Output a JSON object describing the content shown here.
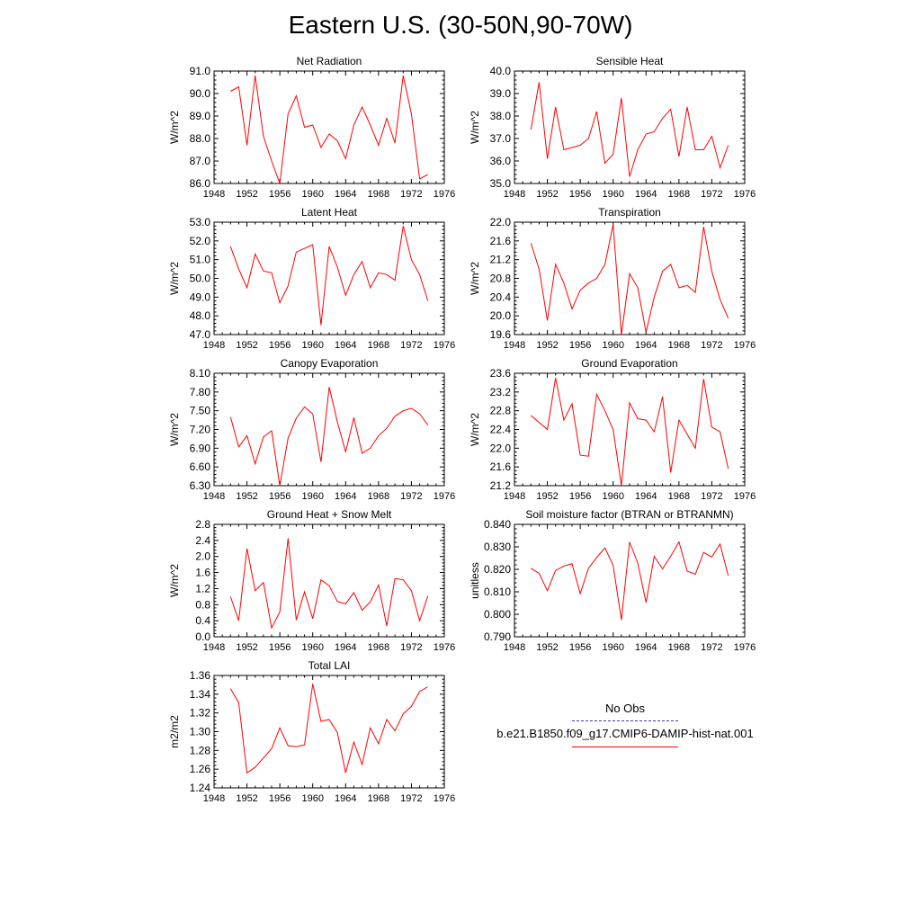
{
  "title": "Eastern U.S. (30-50N,90-70W)",
  "colors": {
    "model_line": "#ff0000",
    "obs_line": "#3a3aa0",
    "axis": "#000000"
  },
  "legend": {
    "obs_label": "No Obs",
    "model_label": "b.e21.B1850.f09_g17.CMIP6-DAMIP-hist-nat.001"
  },
  "chart_data": [
    {
      "type": "line",
      "title": "Net Radiation",
      "xlabel": "",
      "ylabel": "W/m^2",
      "xlim": [
        1948,
        1976
      ],
      "ylim": [
        86.0,
        91.0
      ],
      "xticks": [
        1948,
        1952,
        1956,
        1960,
        1964,
        1968,
        1972,
        1976
      ],
      "yticks": [
        "86.0",
        "87.0",
        "88.0",
        "89.0",
        "90.0",
        "91.0"
      ],
      "x": [
        1950,
        1951,
        1952,
        1953,
        1954,
        1955,
        1956,
        1957,
        1958,
        1959,
        1960,
        1961,
        1962,
        1963,
        1964,
        1965,
        1966,
        1967,
        1968,
        1969,
        1970,
        1971,
        1972,
        1973,
        1974
      ],
      "series": [
        {
          "values": [
            90.1,
            90.3,
            87.7,
            90.8,
            88.1,
            87.0,
            86.0,
            89.1,
            89.9,
            88.5,
            88.6,
            87.6,
            88.2,
            87.9,
            87.1,
            88.6,
            89.4,
            88.6,
            87.7,
            88.9,
            87.8,
            90.8,
            89.1,
            86.2,
            86.4
          ]
        }
      ]
    },
    {
      "type": "line",
      "title": "Sensible Heat",
      "xlabel": "",
      "ylabel": "W/m^2",
      "xlim": [
        1948,
        1976
      ],
      "ylim": [
        35.0,
        40.0
      ],
      "xticks": [
        1948,
        1952,
        1956,
        1960,
        1964,
        1968,
        1972,
        1976
      ],
      "yticks": [
        "35.0",
        "36.0",
        "37.0",
        "38.0",
        "39.0",
        "40.0"
      ],
      "x": [
        1950,
        1951,
        1952,
        1953,
        1954,
        1955,
        1956,
        1957,
        1958,
        1959,
        1960,
        1961,
        1962,
        1963,
        1964,
        1965,
        1966,
        1967,
        1968,
        1969,
        1970,
        1971,
        1972,
        1973,
        1974
      ],
      "series": [
        {
          "values": [
            37.4,
            39.5,
            36.1,
            38.4,
            36.5,
            36.6,
            36.7,
            37.0,
            38.2,
            35.9,
            36.3,
            38.8,
            35.3,
            36.5,
            37.2,
            37.3,
            37.9,
            38.3,
            36.2,
            38.4,
            36.5,
            36.5,
            37.1,
            35.7,
            36.7
          ]
        }
      ]
    },
    {
      "type": "line",
      "title": "Latent Heat",
      "xlabel": "",
      "ylabel": "W/m^2",
      "xlim": [
        1948,
        1976
      ],
      "ylim": [
        47.0,
        53.0
      ],
      "xticks": [
        1948,
        1952,
        1956,
        1960,
        1964,
        1968,
        1972,
        1976
      ],
      "yticks": [
        "47.0",
        "48.0",
        "49.0",
        "50.0",
        "51.0",
        "52.0",
        "53.0"
      ],
      "x": [
        1950,
        1951,
        1952,
        1953,
        1954,
        1955,
        1956,
        1957,
        1958,
        1959,
        1960,
        1961,
        1962,
        1963,
        1964,
        1965,
        1966,
        1967,
        1968,
        1969,
        1970,
        1971,
        1972,
        1973,
        1974
      ],
      "series": [
        {
          "values": [
            51.7,
            50.5,
            49.5,
            51.3,
            50.4,
            50.3,
            48.7,
            49.6,
            51.4,
            51.6,
            51.8,
            47.5,
            51.7,
            50.6,
            49.1,
            50.2,
            50.9,
            49.5,
            50.3,
            50.2,
            49.9,
            52.8,
            51.0,
            50.2,
            48.8
          ]
        }
      ]
    },
    {
      "type": "line",
      "title": "Transpiration",
      "xlabel": "",
      "ylabel": "W/m^2",
      "xlim": [
        1948,
        1976
      ],
      "ylim": [
        19.6,
        22.0
      ],
      "xticks": [
        1948,
        1952,
        1956,
        1960,
        1964,
        1968,
        1972,
        1976
      ],
      "yticks": [
        "19.6",
        "20.0",
        "20.4",
        "20.8",
        "21.2",
        "21.6",
        "22.0"
      ],
      "x": [
        1950,
        1951,
        1952,
        1953,
        1954,
        1955,
        1956,
        1957,
        1958,
        1959,
        1960,
        1961,
        1962,
        1963,
        1964,
        1965,
        1966,
        1967,
        1968,
        1969,
        1970,
        1971,
        1972,
        1973,
        1974
      ],
      "series": [
        {
          "values": [
            21.55,
            21.0,
            19.9,
            21.1,
            20.7,
            20.15,
            20.55,
            20.7,
            20.8,
            21.1,
            21.95,
            19.6,
            20.9,
            20.6,
            19.65,
            20.4,
            20.95,
            21.1,
            20.6,
            20.65,
            20.5,
            21.9,
            20.95,
            20.35,
            19.95
          ]
        }
      ]
    },
    {
      "type": "line",
      "title": "Canopy Evaporation",
      "xlabel": "",
      "ylabel": "W/m^2",
      "xlim": [
        1948,
        1976
      ],
      "ylim": [
        6.3,
        8.1
      ],
      "xticks": [
        1948,
        1952,
        1956,
        1960,
        1964,
        1968,
        1972,
        1976
      ],
      "yticks": [
        "6.30",
        "6.60",
        "6.90",
        "7.20",
        "7.50",
        "7.80",
        "8.10"
      ],
      "x": [
        1950,
        1951,
        1952,
        1953,
        1954,
        1955,
        1956,
        1957,
        1958,
        1959,
        1960,
        1961,
        1962,
        1963,
        1964,
        1965,
        1966,
        1967,
        1968,
        1969,
        1970,
        1971,
        1972,
        1973,
        1974
      ],
      "series": [
        {
          "values": [
            7.4,
            6.92,
            7.1,
            6.65,
            7.08,
            7.18,
            6.3,
            7.06,
            7.38,
            7.56,
            7.45,
            6.68,
            7.88,
            7.32,
            6.84,
            7.39,
            6.82,
            6.9,
            7.1,
            7.22,
            7.41,
            7.5,
            7.54,
            7.45,
            7.27
          ]
        }
      ]
    },
    {
      "type": "line",
      "title": "Ground Evaporation",
      "xlabel": "",
      "ylabel": "W/m^2",
      "xlim": [
        1948,
        1976
      ],
      "ylim": [
        21.2,
        23.6
      ],
      "xticks": [
        1948,
        1952,
        1956,
        1960,
        1964,
        1968,
        1972,
        1976
      ],
      "yticks": [
        "21.2",
        "21.6",
        "22.0",
        "22.4",
        "22.8",
        "23.2",
        "23.6"
      ],
      "x": [
        1950,
        1951,
        1952,
        1953,
        1954,
        1955,
        1956,
        1957,
        1958,
        1959,
        1960,
        1961,
        1962,
        1963,
        1964,
        1965,
        1966,
        1967,
        1968,
        1969,
        1970,
        1971,
        1972,
        1973,
        1974
      ],
      "series": [
        {
          "values": [
            22.7,
            22.55,
            22.4,
            23.5,
            22.6,
            22.95,
            21.85,
            21.83,
            23.15,
            22.8,
            22.4,
            21.2,
            22.97,
            22.63,
            22.6,
            22.35,
            23.1,
            21.48,
            22.6,
            22.3,
            22.0,
            23.48,
            22.45,
            22.35,
            21.56
          ]
        }
      ]
    },
    {
      "type": "line",
      "title": "Ground Heat + Snow Melt",
      "xlabel": "",
      "ylabel": "W/m^2",
      "xlim": [
        1948,
        1976
      ],
      "ylim": [
        0.0,
        2.8
      ],
      "xticks": [
        1948,
        1952,
        1956,
        1960,
        1964,
        1968,
        1972,
        1976
      ],
      "yticks": [
        "0.0",
        "0.4",
        "0.8",
        "1.2",
        "1.6",
        "2.0",
        "2.4",
        "2.8"
      ],
      "x": [
        1950,
        1951,
        1952,
        1953,
        1954,
        1955,
        1956,
        1957,
        1958,
        1959,
        1960,
        1961,
        1962,
        1963,
        1964,
        1965,
        1966,
        1967,
        1968,
        1969,
        1970,
        1971,
        1972,
        1973,
        1974
      ],
      "series": [
        {
          "values": [
            1.0,
            0.4,
            2.2,
            1.15,
            1.35,
            0.22,
            0.62,
            2.45,
            0.42,
            1.12,
            0.45,
            1.42,
            1.27,
            0.88,
            0.82,
            1.1,
            0.66,
            0.87,
            1.29,
            0.27,
            1.45,
            1.42,
            1.15,
            0.4,
            1.02
          ]
        }
      ]
    },
    {
      "type": "line",
      "title": "Soil moisture factor (BTRAN or BTRANMN)",
      "xlabel": "",
      "ylabel": "unitless",
      "xlim": [
        1948,
        1976
      ],
      "ylim": [
        0.79,
        0.84
      ],
      "xticks": [
        1948,
        1952,
        1956,
        1960,
        1964,
        1968,
        1972,
        1976
      ],
      "yticks": [
        "0.790",
        "0.800",
        "0.810",
        "0.820",
        "0.830",
        "0.840"
      ],
      "x": [
        1950,
        1951,
        1952,
        1953,
        1954,
        1955,
        1956,
        1957,
        1958,
        1959,
        1960,
        1961,
        1962,
        1963,
        1964,
        1965,
        1966,
        1967,
        1968,
        1969,
        1970,
        1971,
        1972,
        1973,
        1974
      ],
      "series": [
        {
          "values": [
            0.8205,
            0.8182,
            0.8105,
            0.8195,
            0.8215,
            0.8225,
            0.8092,
            0.8205,
            0.8252,
            0.8295,
            0.8218,
            0.7975,
            0.8322,
            0.8228,
            0.8052,
            0.8258,
            0.8202,
            0.8258,
            0.8322,
            0.8192,
            0.8178,
            0.8275,
            0.8255,
            0.8312,
            0.8172
          ]
        }
      ]
    },
    {
      "type": "line",
      "title": "Total LAI",
      "xlabel": "",
      "ylabel": "m2/m2",
      "xlim": [
        1948,
        1976
      ],
      "ylim": [
        1.24,
        1.36
      ],
      "xticks": [
        1948,
        1952,
        1956,
        1960,
        1964,
        1968,
        1972,
        1976
      ],
      "yticks": [
        "1.24",
        "1.26",
        "1.28",
        "1.30",
        "1.32",
        "1.34",
        "1.36"
      ],
      "x": [
        1950,
        1951,
        1952,
        1953,
        1954,
        1955,
        1956,
        1957,
        1958,
        1959,
        1960,
        1961,
        1962,
        1963,
        1964,
        1965,
        1966,
        1967,
        1968,
        1969,
        1970,
        1971,
        1972,
        1973,
        1974
      ],
      "series": [
        {
          "values": [
            1.346,
            1.331,
            1.256,
            1.262,
            1.272,
            1.282,
            1.304,
            1.285,
            1.284,
            1.286,
            1.351,
            1.311,
            1.313,
            1.299,
            1.256,
            1.289,
            1.265,
            1.304,
            1.287,
            1.313,
            1.301,
            1.319,
            1.327,
            1.343,
            1.348
          ]
        }
      ]
    }
  ]
}
